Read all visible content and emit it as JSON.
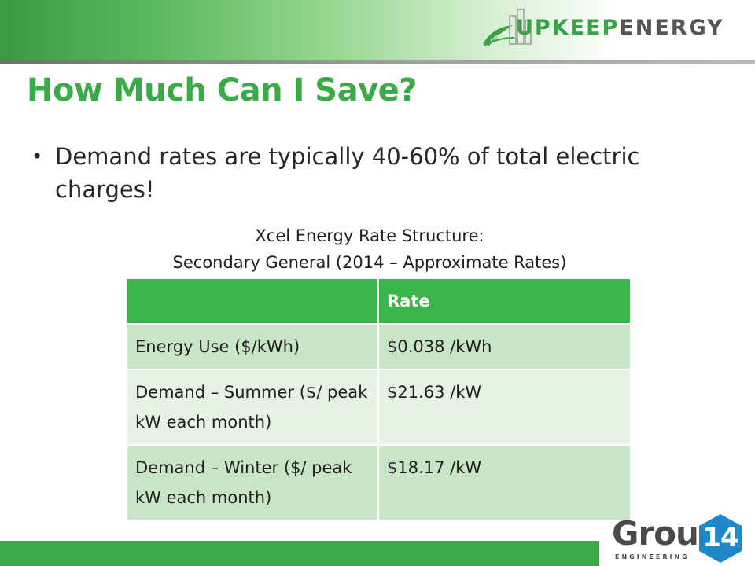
{
  "logo": {
    "brand_part1": "UPKEEP",
    "brand_part2": "ENERGY"
  },
  "slide": {
    "title": "How Much Can I Save?",
    "bullet": "Demand rates are typically 40-60% of total electric charges!"
  },
  "table": {
    "caption_line1": "Xcel Energy Rate Structure:",
    "caption_line2": "Secondary General (2014 – Approximate Rates)",
    "header": [
      "",
      "Rate"
    ],
    "rows": [
      [
        "Energy Use ($/kWh)",
        "$0.038 /kWh"
      ],
      [
        "Demand – Summer ($/ peak kW each month)",
        "$21.63 /kW"
      ],
      [
        "Demand – Winter ($/ peak kW each month)",
        "$18.17 /kW"
      ]
    ]
  },
  "footer_logo": {
    "name": "Group",
    "number": "14",
    "sub": "ENGINEERING"
  },
  "colors": {
    "accent_green": "#3aab46",
    "table_header": "#3ab54a",
    "row_dark": "#c9e5c7",
    "row_light": "#e6f2e4"
  },
  "icons": [
    "leaf-icon",
    "city-skyline-icon",
    "hexagon-badge-icon"
  ]
}
